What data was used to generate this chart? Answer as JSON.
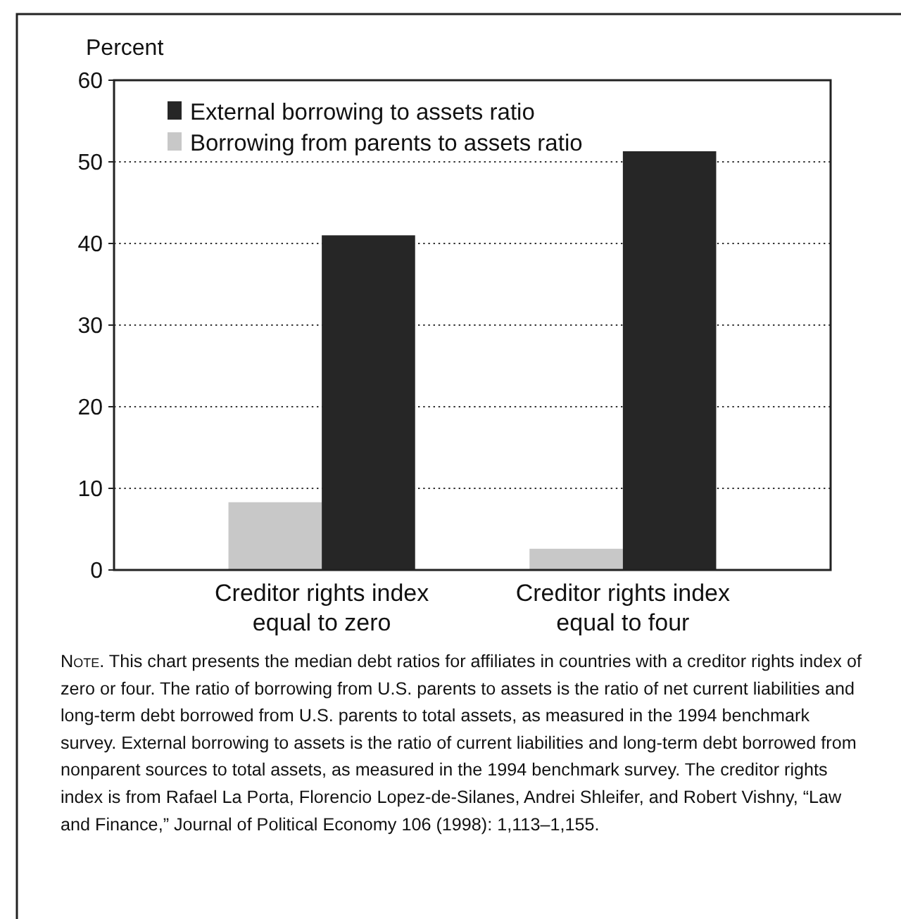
{
  "chart_data": {
    "type": "bar",
    "ylabel": "Percent",
    "categories": [
      "Creditor rights index equal to zero",
      "Creditor rights index equal to four"
    ],
    "series": [
      {
        "name": "Borrowing from parents to assets ratio",
        "color": "#c8c8c8",
        "values": [
          8.3,
          2.6
        ]
      },
      {
        "name": "External borrowing to assets ratio",
        "color": "#262626",
        "values": [
          41.0,
          51.3
        ]
      }
    ],
    "ylim": [
      0,
      60
    ],
    "yticks": [
      0,
      10,
      20,
      30,
      40,
      50,
      60
    ],
    "grid": "y",
    "legend": "top left",
    "annotations": [
      "Note. This chart presents the median debt ratios for affiliates in countries with a creditor rights index of zero or four. The ratio of borrowing from U.S. parents to assets is the ratio of net current liabilities and long-term debt borrowed from U.S. parents to total assets, as measured in the 1994 benchmark survey. External borrowing to assets is the ratio of current liabilities and long-term debt borrowed from nonparent sources to total assets, as measured in the 1994 benchmark survey. The creditor rights index is from Rafael La Porta, Florencio Lopez-de-Silanes, Andrei Shleifer, and Robert Vishny, “Law and Finance,” Journal of Political Economy 106 (1998): 1,113–1,155."
    ]
  }
}
